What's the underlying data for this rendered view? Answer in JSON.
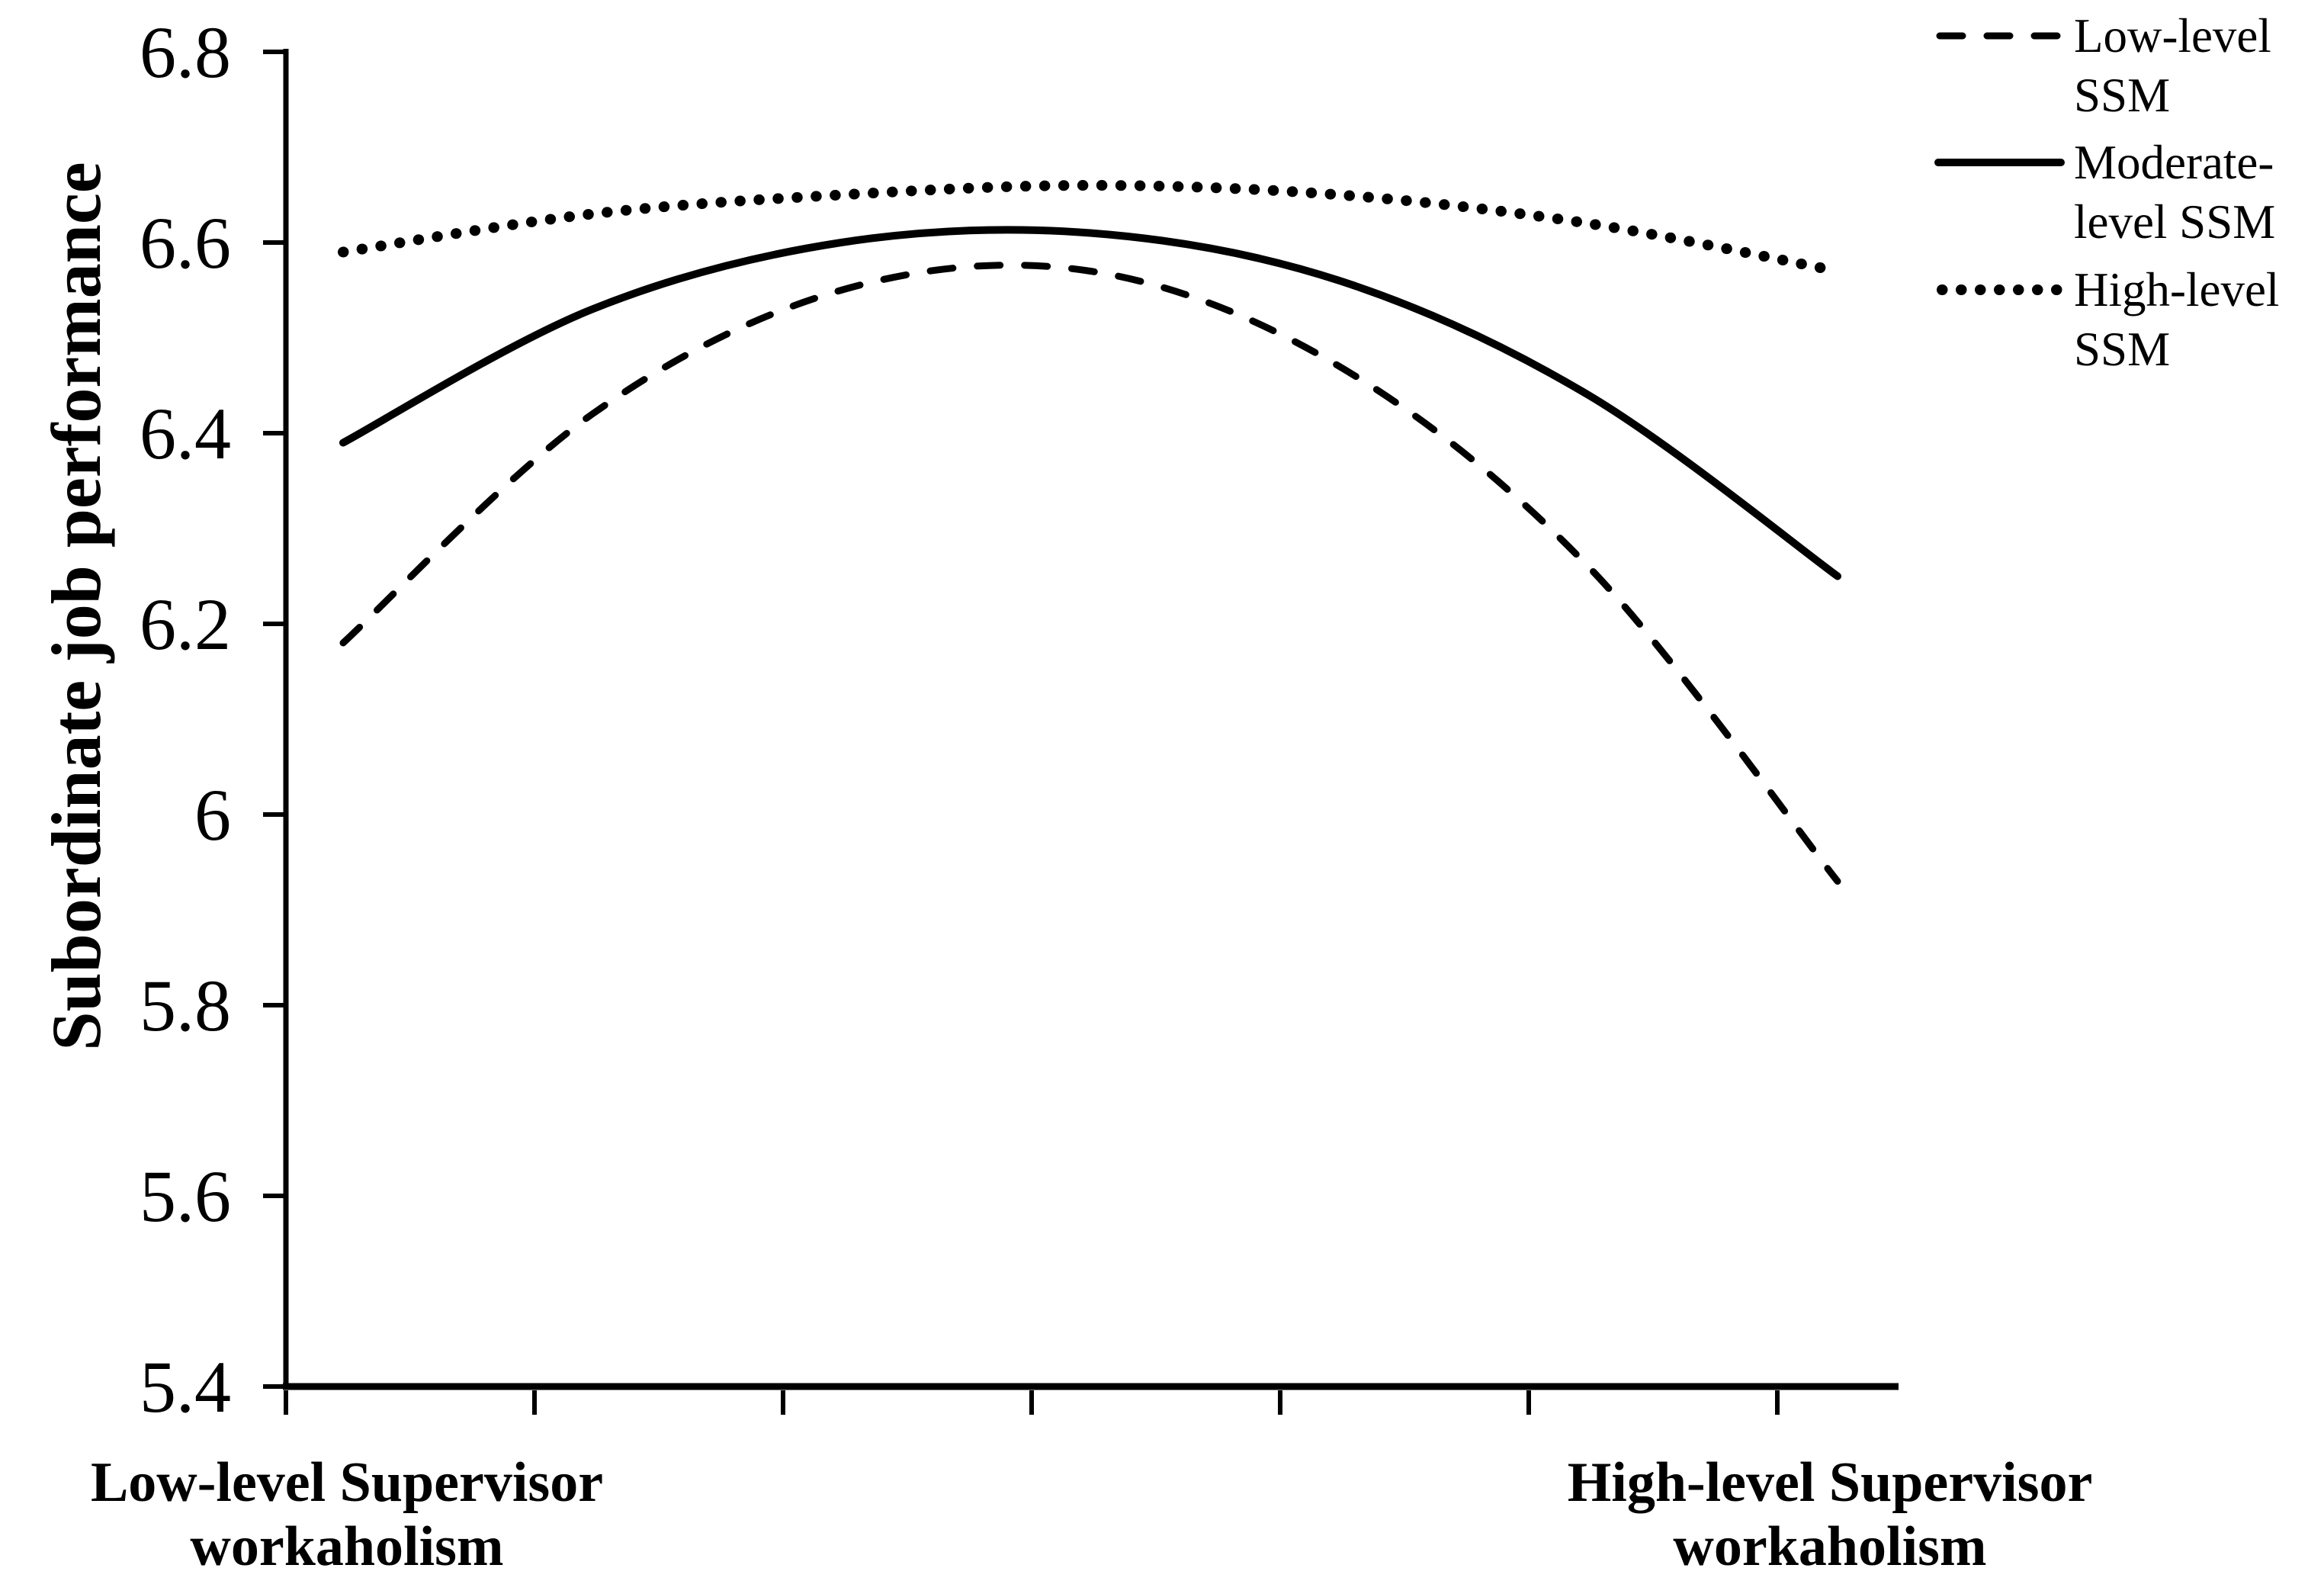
{
  "colors": {
    "foreground": "#000000",
    "background": "#ffffff"
  },
  "chart_data": {
    "type": "line",
    "title": "",
    "ylabel": "Subordinate job performance",
    "xlabel_left": "Low-level Supervisor\nworkaholism",
    "xlabel_right": "High-level Supervisor\nworkaholism",
    "x": [
      1,
      2,
      3,
      4,
      5,
      6,
      7
    ],
    "series": [
      {
        "name": "Low-level SSM",
        "style": "dashed",
        "values": [
          6.18,
          6.42,
          6.55,
          6.57,
          6.47,
          6.26,
          5.93
        ]
      },
      {
        "name": "Moderate-level SSM",
        "style": "solid",
        "values": [
          6.39,
          6.53,
          6.6,
          6.61,
          6.56,
          6.44,
          6.25
        ]
      },
      {
        "name": "High-level SSM",
        "style": "dotted",
        "values": [
          6.59,
          6.63,
          6.65,
          6.66,
          6.65,
          6.62,
          6.57
        ]
      }
    ],
    "y_ticks": [
      "6.8",
      "6.6",
      "6.4",
      "6.2",
      "6",
      "5.8",
      "5.6",
      "5.4"
    ],
    "y_tick_values": [
      6.8,
      6.6,
      6.4,
      6.2,
      6.0,
      5.8,
      5.6,
      5.4
    ],
    "ylim": [
      5.4,
      6.8
    ],
    "x_tick_count": 7,
    "grid": false,
    "legend_position": "top-right",
    "legend": [
      {
        "label": "Low-level\nSSM",
        "style": "dashed"
      },
      {
        "label": "Moderate-\nlevel SSM",
        "style": "solid"
      },
      {
        "label": "High-level\nSSM",
        "style": "dotted"
      }
    ]
  }
}
